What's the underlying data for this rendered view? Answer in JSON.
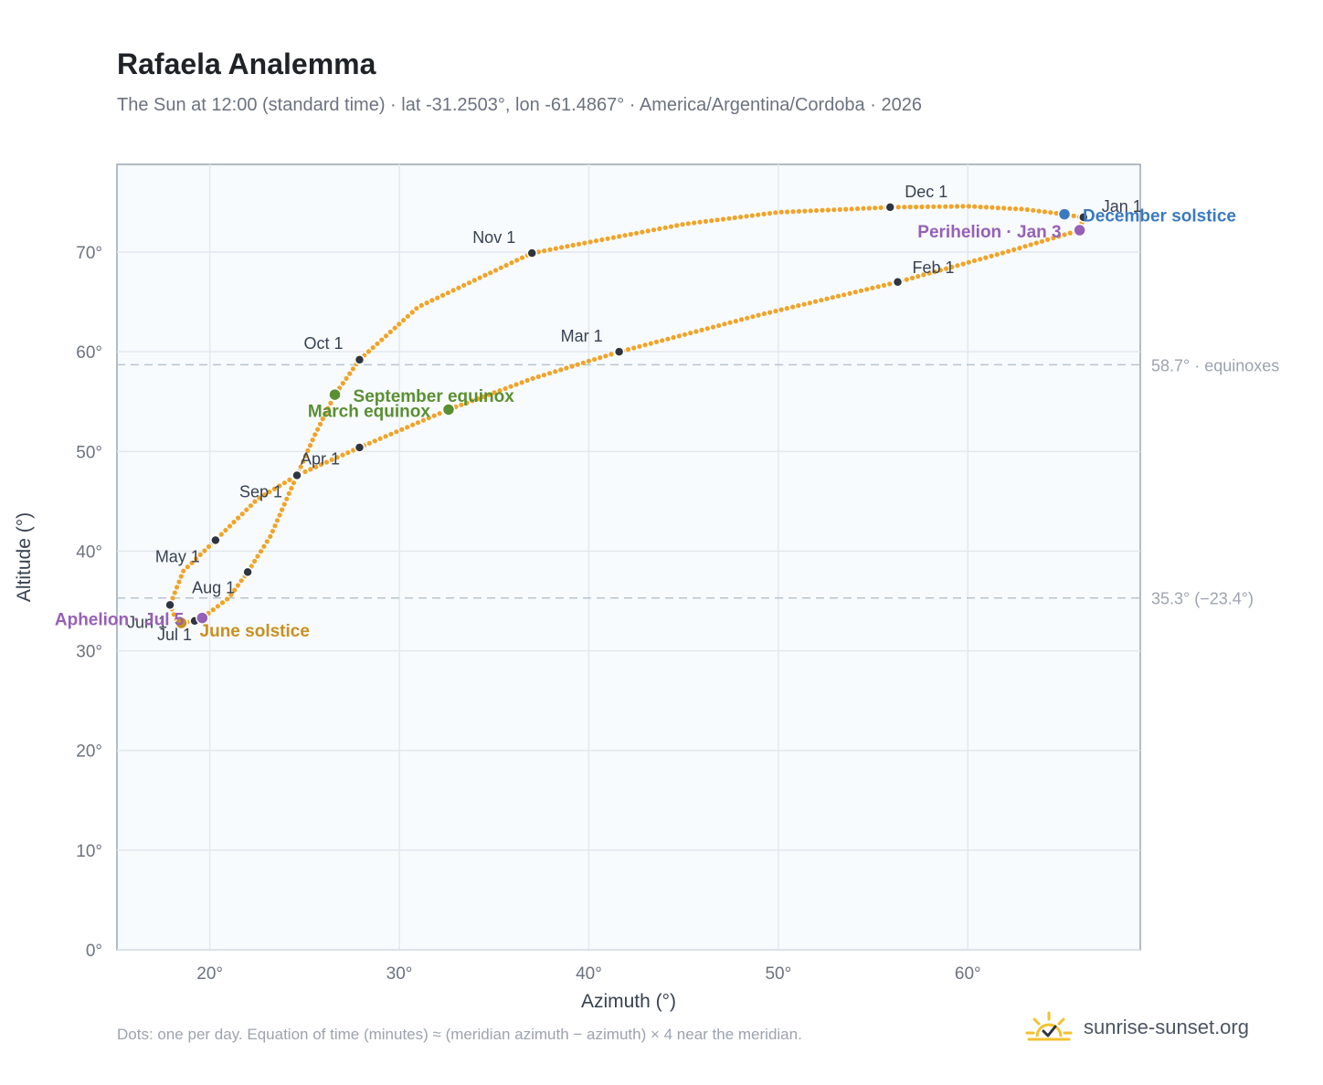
{
  "title": "Rafaela Analemma",
  "subtitle": "The Sun at 12:00 (standard time) · lat -31.2503°, lon -61.4867° · America/Argentina/Cordoba · 2026",
  "footnote": "Dots: one per day. Equation of time (minutes) ≈ (meridian azimuth − azimuth) × 4 near the meridian.",
  "brand": {
    "name": "sunrise-sunset.org",
    "logo_icon": "sun-logo-icon"
  },
  "colors": {
    "path": "#f0a428",
    "month_dot": "#2f3540",
    "equinox": "#5a8f32",
    "june_solstice": "#c8901e",
    "december_solstice": "#3a7abf",
    "perihelion_aphelion": "#9660b8",
    "plot_bg": "#f8fbfe",
    "grid": "#e3e8ee",
    "ref_line": "#b8c4d0"
  },
  "chart_data": {
    "type": "scatter",
    "xlabel": "Azimuth (°)",
    "ylabel": "Altitude (°)",
    "xlim": [
      15.1,
      69.1
    ],
    "ylim": [
      0,
      78.8
    ],
    "x_ticks": [
      {
        "value": 20,
        "label": "20°"
      },
      {
        "value": 30,
        "label": "30°"
      },
      {
        "value": 40,
        "label": "40°"
      },
      {
        "value": 50,
        "label": "50°"
      },
      {
        "value": 60,
        "label": "60°"
      }
    ],
    "y_ticks": [
      {
        "value": 0,
        "label": "0°"
      },
      {
        "value": 10,
        "label": "10°"
      },
      {
        "value": 20,
        "label": "20°"
      },
      {
        "value": 30,
        "label": "30°"
      },
      {
        "value": 40,
        "label": "40°"
      },
      {
        "value": 50,
        "label": "50°"
      },
      {
        "value": 60,
        "label": "60°"
      },
      {
        "value": 70,
        "label": "70°"
      }
    ],
    "grid": true,
    "reference_lines": [
      {
        "altitude": 58.7,
        "label": "58.7° · equinoxes"
      },
      {
        "altitude": 35.3,
        "label": "35.3° (−23.4°)"
      }
    ],
    "months": [
      {
        "label": "Jan 1",
        "azimuth": 66.1,
        "altitude": 73.5
      },
      {
        "label": "Feb 1",
        "azimuth": 56.3,
        "altitude": 67.0
      },
      {
        "label": "Mar 1",
        "azimuth": 41.6,
        "altitude": 60.0
      },
      {
        "label": "",
        "azimuth": 27.9,
        "altitude": 50.4
      },
      {
        "label": "Apr 1",
        "azimuth": 24.6,
        "altitude": 47.6
      },
      {
        "label": "May 1",
        "azimuth": 20.3,
        "altitude": 41.1
      },
      {
        "label": "Jun 1",
        "azimuth": 17.9,
        "altitude": 34.6
      },
      {
        "label": "Jul 1",
        "azimuth": 19.2,
        "altitude": 33.0
      },
      {
        "label": "Aug 1",
        "azimuth": 22.0,
        "altitude": 37.9
      },
      {
        "label": "Sep 1",
        "azimuth": 24.6,
        "altitude": 47.6
      },
      {
        "label": "Oct 1",
        "azimuth": 27.9,
        "altitude": 59.2
      },
      {
        "label": "Nov 1",
        "azimuth": 37.0,
        "altitude": 69.9
      },
      {
        "label": "Dec 1",
        "azimuth": 55.9,
        "altitude": 74.5
      }
    ],
    "events": [
      {
        "label": "March equinox",
        "azimuth": 32.6,
        "altitude": 54.2
      },
      {
        "label": "September equinox",
        "azimuth": 26.6,
        "altitude": 55.7
      },
      {
        "label": "June solstice",
        "azimuth": 18.5,
        "altitude": 32.8
      },
      {
        "label": "December solstice",
        "azimuth": 65.1,
        "altitude": 73.8
      },
      {
        "label": "Perihelion · Jan 3",
        "azimuth": 65.9,
        "altitude": 72.2
      },
      {
        "label": "Aphelion · Jul 5",
        "azimuth": 19.6,
        "altitude": 33.3
      }
    ],
    "path": [
      [
        66.1,
        73.5
      ],
      [
        65.9,
        72.2
      ],
      [
        62.0,
        70.0
      ],
      [
        56.3,
        67.0
      ],
      [
        49.0,
        63.7
      ],
      [
        41.6,
        60.0
      ],
      [
        37.0,
        57.3
      ],
      [
        32.6,
        54.2
      ],
      [
        27.9,
        50.4
      ],
      [
        24.6,
        47.6
      ],
      [
        22.5,
        45.2
      ],
      [
        20.3,
        41.1
      ],
      [
        18.6,
        38.0
      ],
      [
        17.9,
        34.6
      ],
      [
        18.2,
        33.2
      ],
      [
        18.5,
        32.8
      ],
      [
        19.2,
        33.0
      ],
      [
        19.6,
        33.3
      ],
      [
        21.0,
        35.3
      ],
      [
        22.0,
        37.9
      ],
      [
        23.2,
        41.5
      ],
      [
        24.6,
        47.6
      ],
      [
        25.5,
        51.5
      ],
      [
        26.6,
        55.7
      ],
      [
        27.9,
        59.2
      ],
      [
        31.0,
        64.5
      ],
      [
        37.0,
        69.9
      ],
      [
        45.0,
        72.8
      ],
      [
        50.0,
        74.0
      ],
      [
        55.9,
        74.5
      ],
      [
        60.0,
        74.6
      ],
      [
        63.0,
        74.3
      ],
      [
        65.1,
        73.8
      ],
      [
        66.3,
        73.4
      ],
      [
        66.1,
        73.5
      ]
    ]
  }
}
